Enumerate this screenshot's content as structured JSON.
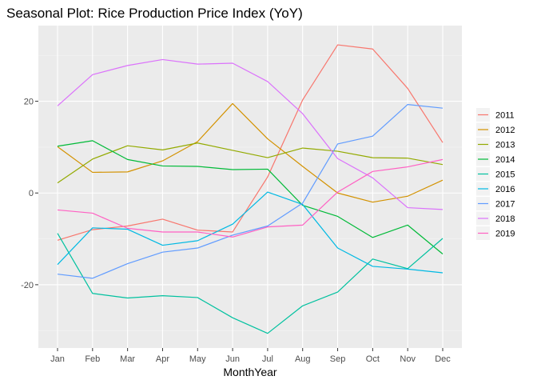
{
  "chart_data": {
    "type": "line",
    "title": "Seasonal Plot: Rice Production Price Index (YoY)",
    "xlabel": "MonthYear",
    "ylabel": "",
    "categories": [
      "Jan",
      "Feb",
      "Mar",
      "Apr",
      "May",
      "Jun",
      "Jul",
      "Aug",
      "Sep",
      "Oct",
      "Nov",
      "Dec"
    ],
    "ylim": [
      -33.8,
      36.5
    ],
    "y_ticks": [
      -20,
      0,
      20
    ],
    "grid": true,
    "legend_position": "right",
    "series": [
      {
        "name": "2011",
        "color": "#F8766D",
        "values": [
          -10.3,
          -8.0,
          -7.2,
          -5.7,
          -8.1,
          -8.5,
          3.5,
          20.3,
          32.3,
          31.4,
          22.8,
          11.0
        ]
      },
      {
        "name": "2012",
        "color": "#D39200",
        "values": [
          10.1,
          4.5,
          4.6,
          7.0,
          11.2,
          19.5,
          11.8,
          5.8,
          0.0,
          -2.0,
          -0.7,
          2.8
        ]
      },
      {
        "name": "2013",
        "color": "#93AA00",
        "values": [
          2.2,
          7.4,
          10.3,
          9.4,
          10.9,
          9.3,
          7.7,
          9.8,
          9.1,
          7.7,
          7.6,
          6.2
        ]
      },
      {
        "name": "2014",
        "color": "#00BA38",
        "values": [
          10.2,
          11.4,
          7.3,
          5.9,
          5.8,
          5.1,
          5.2,
          -2.7,
          -5.1,
          -9.7,
          -7.0,
          -13.3
        ]
      },
      {
        "name": "2015",
        "color": "#00C19F",
        "values": [
          -8.8,
          -21.9,
          -22.9,
          -22.4,
          -22.8,
          -27.2,
          -30.6,
          -24.6,
          -21.6,
          -14.4,
          -16.5,
          -9.9
        ]
      },
      {
        "name": "2016",
        "color": "#00B9E3",
        "values": [
          -15.6,
          -7.6,
          -7.9,
          -11.4,
          -10.4,
          -6.8,
          0.2,
          -2.5,
          -12.0,
          -16.0,
          -16.6,
          -17.4
        ]
      },
      {
        "name": "2017",
        "color": "#619CFF",
        "values": [
          -17.7,
          -18.6,
          -15.4,
          -12.9,
          -12.0,
          -9.2,
          -7.2,
          -2.2,
          10.7,
          12.4,
          19.3,
          18.5
        ]
      },
      {
        "name": "2018",
        "color": "#DB72FB",
        "values": [
          19.0,
          25.8,
          27.8,
          29.1,
          28.1,
          28.3,
          24.3,
          17.3,
          7.5,
          3.3,
          -3.2,
          -3.6
        ]
      },
      {
        "name": "2019",
        "color": "#FF61C3",
        "values": [
          -3.7,
          -4.4,
          -7.7,
          -8.5,
          -8.5,
          -9.6,
          -7.4,
          -7.0,
          0.2,
          4.7,
          5.7,
          7.3
        ]
      }
    ]
  }
}
